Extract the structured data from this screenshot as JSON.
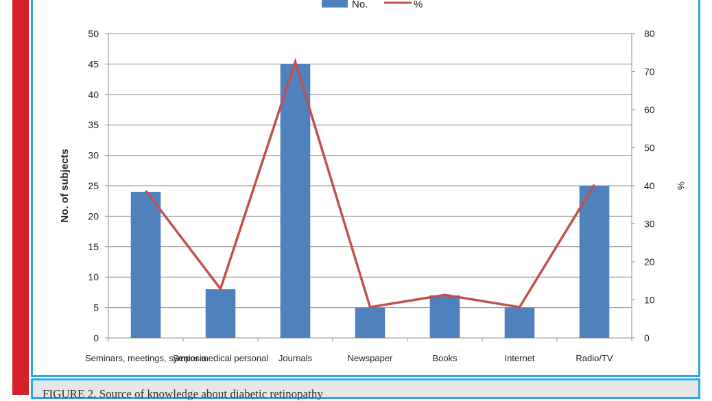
{
  "chart_data": {
    "type": "bar",
    "categories": [
      "Seminars, meetings, symposia",
      "Senior medical personal",
      "Journals",
      "Newspaper",
      "Books",
      "Internet",
      "Radio/TV"
    ],
    "series": [
      {
        "name": "No.",
        "kind": "bar",
        "axis": "left",
        "color": "#4f81bd",
        "values": [
          24,
          8,
          45,
          5,
          7,
          5,
          25
        ]
      },
      {
        "name": "%",
        "kind": "line",
        "axis": "right",
        "color": "#c0504d",
        "values": [
          38.7,
          12.9,
          72.6,
          8.1,
          11.3,
          8.1,
          40.3
        ]
      }
    ],
    "ylabel": "No. of subjects",
    "ylabel_right": "%",
    "ylim": [
      0,
      50
    ],
    "yticks": [
      0,
      5,
      10,
      15,
      20,
      25,
      30,
      35,
      40,
      45,
      50
    ],
    "ylim_right": [
      0,
      80
    ],
    "yticks_right": [
      0,
      10,
      20,
      30,
      40,
      50,
      60,
      70,
      80
    ],
    "grid": true,
    "legend_position": "top"
  },
  "caption": "FIGURE 2. Source of knowledge about diabetic retinopathy"
}
